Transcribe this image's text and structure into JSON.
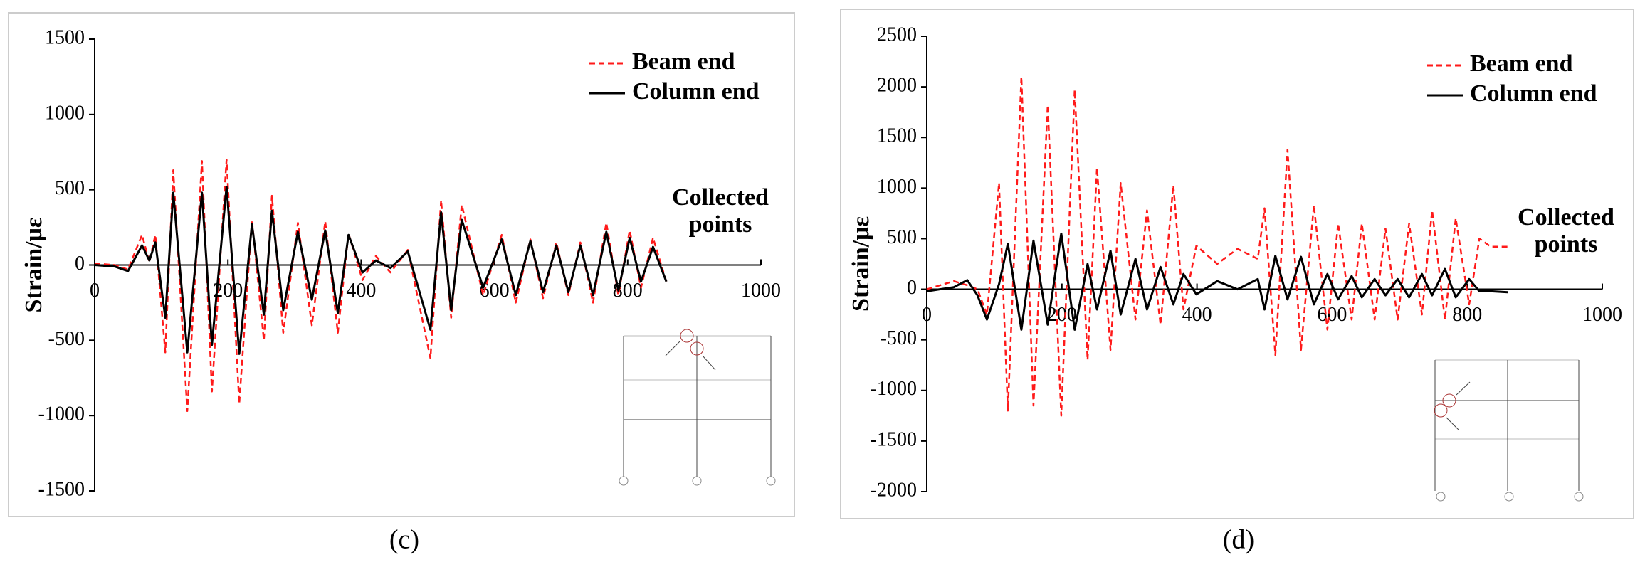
{
  "chart_data": [
    {
      "type": "line",
      "ylabel": "Strain/με",
      "annotation_lines": [
        "Collected",
        "points"
      ],
      "panel_label": "(c)",
      "legend": "upper right",
      "xlim": [
        0,
        1000
      ],
      "xticks": [
        0,
        200,
        400,
        600,
        800,
        1000
      ],
      "ylim": [
        -1500,
        1500
      ],
      "yticks": [
        -1500,
        -1000,
        -500,
        0,
        500,
        1000,
        1500
      ],
      "x": [
        0,
        30,
        50,
        71,
        82,
        91,
        106,
        118,
        139,
        161,
        176,
        198,
        217,
        236,
        254,
        266,
        283,
        305,
        326,
        346,
        365,
        381,
        402,
        422,
        444,
        470,
        504,
        520,
        535,
        551,
        583,
        611,
        632,
        654,
        673,
        693,
        711,
        729,
        748,
        768,
        786,
        803,
        820,
        838,
        858
      ],
      "series": [
        {
          "name": "Beam end",
          "color": "#ff1a1a",
          "dash": true,
          "values": [
            10,
            0,
            -30,
            200,
            20,
            200,
            -580,
            630,
            -970,
            690,
            -840,
            700,
            -920,
            300,
            -500,
            460,
            -450,
            280,
            -400,
            290,
            -450,
            210,
            -100,
            60,
            -50,
            100,
            -620,
            430,
            -350,
            400,
            -200,
            200,
            -250,
            170,
            -220,
            150,
            -200,
            150,
            -250,
            280,
            -200,
            230,
            -150,
            180,
            -110
          ]
        },
        {
          "name": "Column end",
          "color": "#000000",
          "dash": false,
          "values": [
            0,
            -10,
            -40,
            130,
            30,
            150,
            -350,
            480,
            -580,
            480,
            -530,
            520,
            -590,
            270,
            -330,
            360,
            -300,
            220,
            -230,
            230,
            -320,
            200,
            -50,
            30,
            -20,
            90,
            -430,
            350,
            -300,
            300,
            -150,
            170,
            -200,
            160,
            -180,
            130,
            -180,
            130,
            -200,
            220,
            -170,
            180,
            -110,
            120,
            -110
          ]
        }
      ]
    },
    {
      "type": "line",
      "ylabel": "Strain/με",
      "annotation_lines": [
        "Collected",
        "points"
      ],
      "panel_label": "(d)",
      "legend": "upper right",
      "xlim": [
        0,
        1000
      ],
      "xticks": [
        0,
        200,
        400,
        600,
        800,
        1000
      ],
      "ylim": [
        -2000,
        2500
      ],
      "yticks": [
        -2000,
        -1500,
        -1000,
        -500,
        0,
        500,
        1000,
        1500,
        2000,
        2500
      ],
      "x": [
        0,
        40,
        60,
        75,
        89,
        107,
        120,
        140,
        158,
        179,
        199,
        219,
        238,
        252,
        272,
        287,
        309,
        326,
        346,
        365,
        380,
        399,
        430,
        460,
        490,
        500,
        516,
        534,
        554,
        573,
        593,
        609,
        629,
        644,
        663,
        679,
        697,
        714,
        733,
        748,
        767,
        783,
        803,
        818,
        835,
        860
      ],
      "series": [
        {
          "name": "Beam end",
          "color": "#ff1a1a",
          "dash": true,
          "values": [
            0,
            80,
            40,
            0,
            -250,
            1050,
            -1200,
            2100,
            -1150,
            1820,
            -1250,
            1970,
            -700,
            1200,
            -600,
            1050,
            -300,
            780,
            -350,
            1030,
            -200,
            430,
            250,
            400,
            300,
            800,
            -650,
            1380,
            -600,
            830,
            -400,
            650,
            -300,
            650,
            -300,
            600,
            -300,
            650,
            -250,
            780,
            -300,
            700,
            -150,
            500,
            420,
            420
          ]
        },
        {
          "name": "Column end",
          "color": "#000000",
          "dash": false,
          "values": [
            -20,
            20,
            90,
            -60,
            -300,
            50,
            450,
            -400,
            480,
            -350,
            550,
            -400,
            250,
            -200,
            380,
            -250,
            300,
            -200,
            220,
            -150,
            150,
            -50,
            80,
            0,
            100,
            -200,
            330,
            -100,
            320,
            -150,
            150,
            -100,
            130,
            -80,
            100,
            -60,
            100,
            -80,
            150,
            -60,
            200,
            -80,
            100,
            -20,
            -20,
            -30
          ]
        }
      ]
    }
  ]
}
